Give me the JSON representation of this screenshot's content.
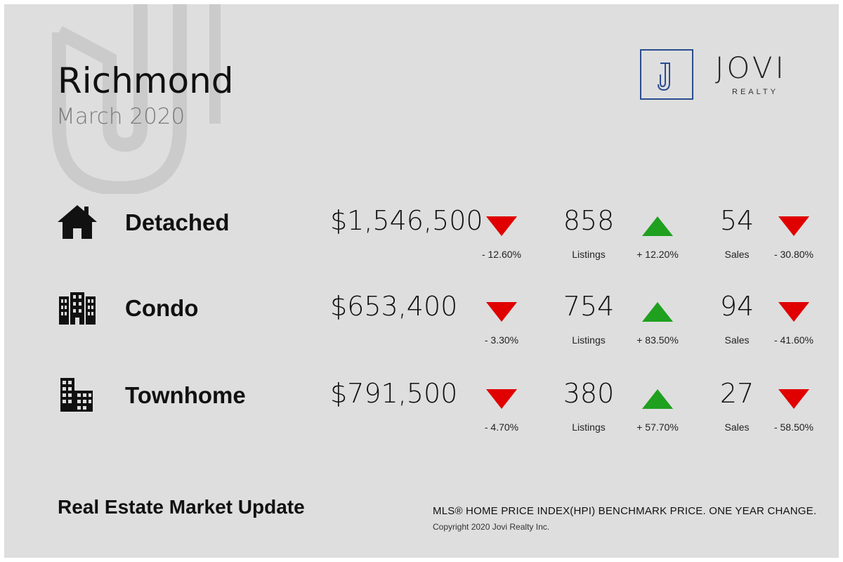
{
  "header": {
    "title": "Richmond",
    "subtitle": "March 2020"
  },
  "logo": {
    "mark": "J",
    "name": "JOVI",
    "sub": "REALTY",
    "color": "#2a4d8f"
  },
  "colors": {
    "down": "#e00000",
    "up": "#1fa01f",
    "background": "#dedede"
  },
  "rows": [
    {
      "icon": "house-icon",
      "type": "Detached",
      "price": "$1,546,500",
      "price_trend": "down",
      "price_change": "- 12.60%",
      "listings": "858",
      "listings_label": "Listings",
      "listings_trend": "up",
      "listings_change": "+ 12.20%",
      "sales": "54",
      "sales_label": "Sales",
      "sales_trend": "down",
      "sales_change": "- 30.80%"
    },
    {
      "icon": "condo-building-icon",
      "type": "Condo",
      "price": "$653,400",
      "price_trend": "down",
      "price_change": "- 3.30%",
      "listings": "754",
      "listings_label": "Listings",
      "listings_trend": "up",
      "listings_change": "+ 83.50%",
      "sales": "94",
      "sales_label": "Sales",
      "sales_trend": "down",
      "sales_change": "- 41.60%"
    },
    {
      "icon": "townhome-building-icon",
      "type": "Townhome",
      "price": "$791,500",
      "price_trend": "down",
      "price_change": "- 4.70%",
      "listings": "380",
      "listings_label": "Listings",
      "listings_trend": "up",
      "listings_change": "+ 57.70%",
      "sales": "27",
      "sales_label": "Sales",
      "sales_trend": "down",
      "sales_change": "- 58.50%"
    }
  ],
  "footer": {
    "title": "Real Estate Market Update",
    "note": "MLS® HOME PRICE INDEX(HPI) BENCHMARK PRICE. ONE YEAR CHANGE.",
    "copyright": "Copyright 2020 Jovi Realty Inc."
  }
}
